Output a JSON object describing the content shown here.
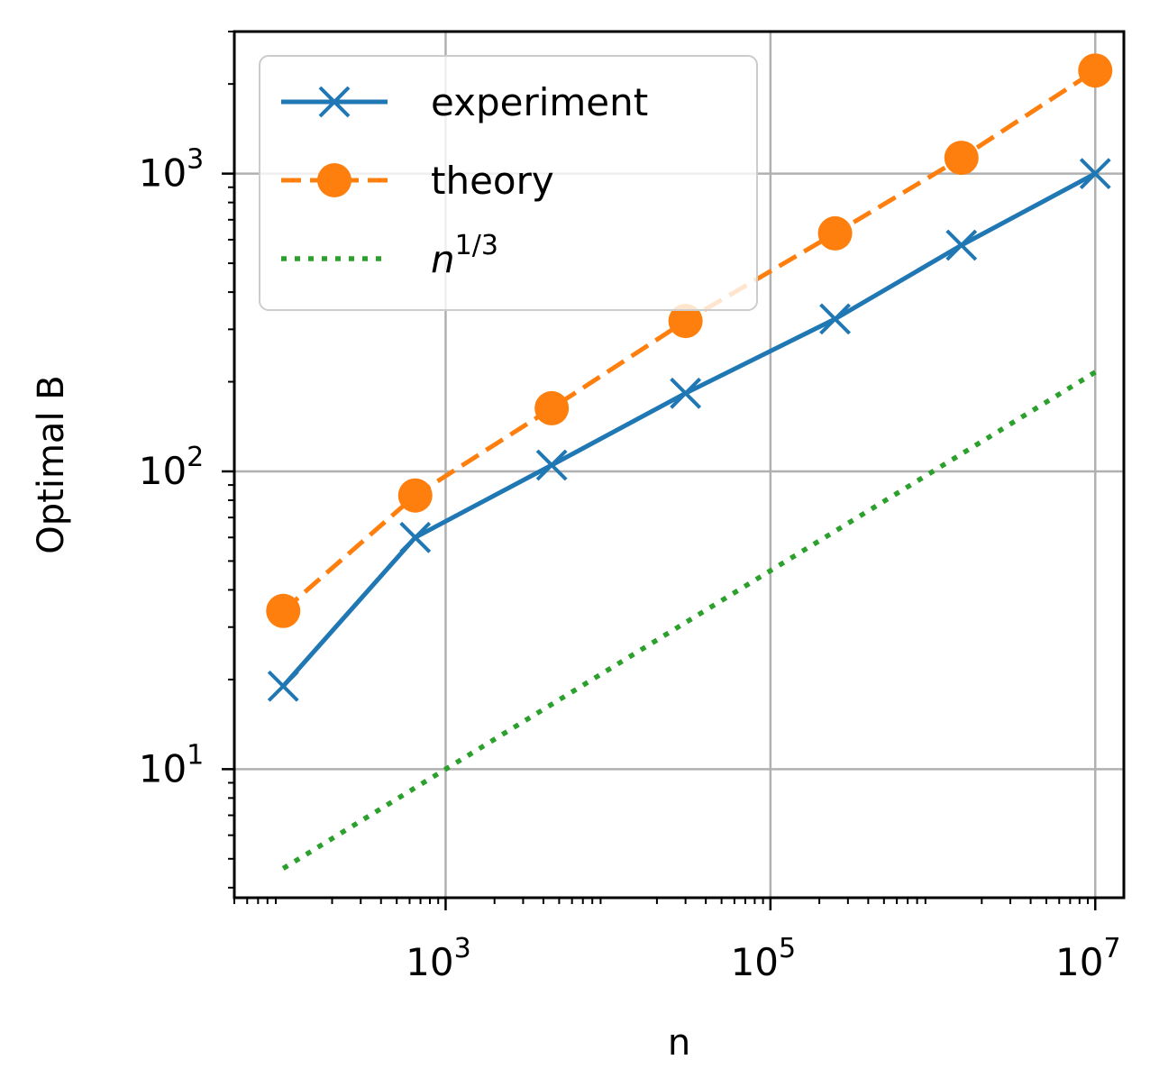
{
  "chart_data": {
    "type": "line",
    "title": "",
    "xlabel": "n",
    "ylabel": "Optimal B",
    "xscale": "log",
    "yscale": "log",
    "xlim": [
      50,
      15000000
    ],
    "ylim": [
      3.7,
      3000
    ],
    "grid": true,
    "legend_position": "upper-left",
    "x_tick_labels": [
      {
        "base": "10",
        "exp": "3",
        "value": 1000
      },
      {
        "base": "10",
        "exp": "5",
        "value": 100000
      },
      {
        "base": "10",
        "exp": "7",
        "value": 10000000
      }
    ],
    "y_tick_labels": [
      {
        "base": "10",
        "exp": "1",
        "value": 10
      },
      {
        "base": "10",
        "exp": "2",
        "value": 100
      },
      {
        "base": "10",
        "exp": "3",
        "value": 1000
      }
    ],
    "series": [
      {
        "name": "experiment",
        "color": "#1f77b4",
        "line_style": "solid",
        "marker": "x",
        "x": [
          100,
          650,
          4500,
          30000,
          250000,
          1500000,
          10000000
        ],
        "y": [
          19,
          60,
          105,
          183,
          325,
          575,
          1000
        ]
      },
      {
        "name": "theory",
        "color": "#ff7f0e",
        "line_style": "dashed",
        "marker": "o",
        "x": [
          100,
          650,
          4500,
          30000,
          250000,
          1500000,
          10000000
        ],
        "y": [
          34,
          83,
          163,
          320,
          630,
          1130,
          2220
        ]
      },
      {
        "name_base": "n",
        "name_sup": "1/3",
        "color": "#2ca02c",
        "line_style": "dotted",
        "marker": "none",
        "x": [
          100,
          10000000
        ],
        "y": [
          4.64,
          215.4
        ]
      }
    ]
  }
}
